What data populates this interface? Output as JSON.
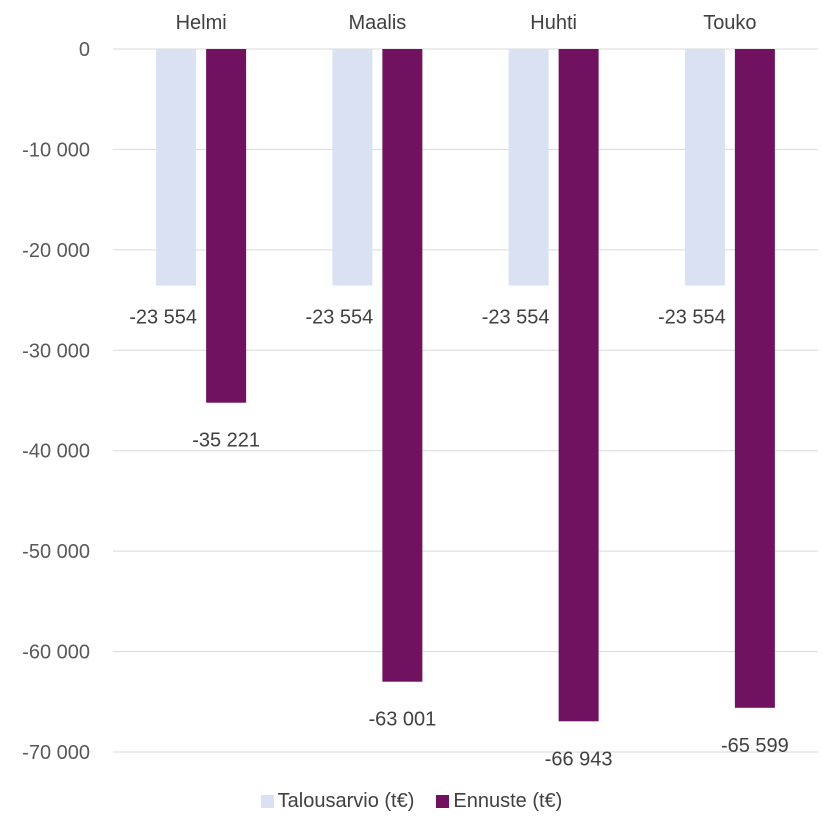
{
  "chart_data": {
    "type": "bar",
    "categories": [
      "Helmi",
      "Maalis",
      "Huhti",
      "Touko"
    ],
    "series": [
      {
        "name": "Talousarvio (t€)",
        "values": [
          -23554,
          -23554,
          -23554,
          -23554
        ],
        "color": "#d9e1f2"
      },
      {
        "name": "Ennuste (t€)",
        "values": [
          -35221,
          -63001,
          -66943,
          -65599
        ],
        "color": "#70125f"
      }
    ],
    "value_labels": [
      [
        "-23 554",
        "-23 554",
        "-23 554",
        "-23 554"
      ],
      [
        "-35 221",
        "-63 001",
        "-66 943",
        "-65 599"
      ]
    ],
    "ylim": [
      -70000,
      0
    ],
    "yticks": [
      0,
      -10000,
      -20000,
      -30000,
      -40000,
      -50000,
      -60000,
      -70000
    ],
    "ytick_labels": [
      "0",
      "-10 000",
      "-20 000",
      "-30 000",
      "-40 000",
      "-50 000",
      "-60 000",
      "-70 000"
    ],
    "category_axis_position": "top",
    "legend_position": "bottom",
    "grid": true,
    "gridline_color": "#d9d9d9"
  }
}
